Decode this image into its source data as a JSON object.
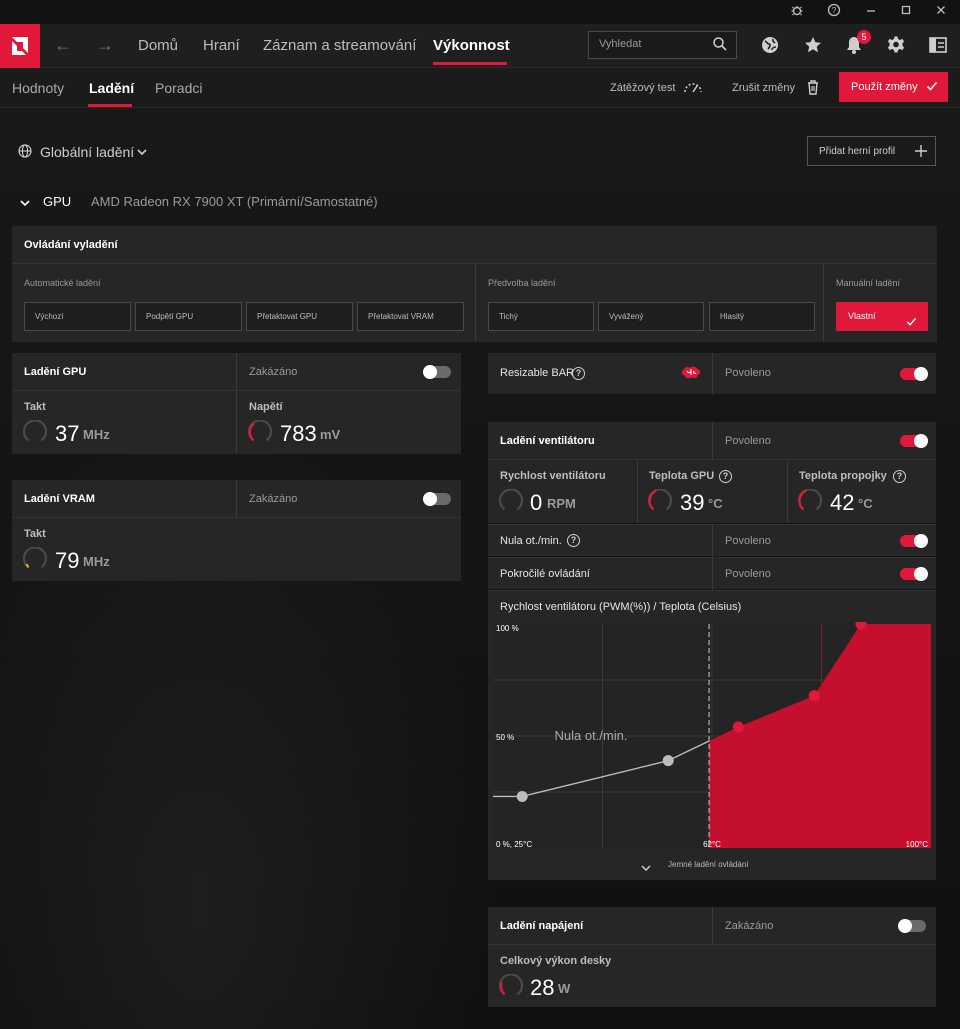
{
  "topnav": {
    "items": [
      "Domů",
      "Hraní",
      "Záznam a streamování",
      "Výkonnost"
    ],
    "search_placeholder": "Vyhledat",
    "notifications_count": "5"
  },
  "subnav": {
    "tabs": [
      "Hodnoty",
      "Ladění",
      "Poradci"
    ],
    "stress_test": "Zátěžový test",
    "discard": "Zrušit změny",
    "apply": "Použít změny"
  },
  "profile": {
    "global": "Globální ladění",
    "add_profile": "Přidat herní profil"
  },
  "gpu": {
    "label": "GPU",
    "name": "AMD Radeon RX 7900 XT (Primární/Samostatné)"
  },
  "tuning_control": {
    "title": "Ovládání vyladění",
    "auto_label": "Automatické ladění",
    "auto_buttons": [
      "Výchozí",
      "Podpětí GPU",
      "Přetaktovat GPU",
      "Přetaktovat VRAM"
    ],
    "preset_label": "Předvolba ladění",
    "preset_buttons": [
      "Tichý",
      "Vyvážený",
      "Hlasitý"
    ],
    "manual_label": "Manuální ladění",
    "manual_button": "Vlastní"
  },
  "gpu_tuning": {
    "title": "Ladění GPU",
    "state": "Zakázáno",
    "clock_label": "Takt",
    "clock_value": "37",
    "clock_unit": "MHz",
    "voltage_label": "Napětí",
    "voltage_value": "783",
    "voltage_unit": "mV"
  },
  "vram_tuning": {
    "title": "Ladění VRAM",
    "state": "Zakázáno",
    "clock_label": "Takt",
    "clock_value": "79",
    "clock_unit": "MHz"
  },
  "resizable_bar": {
    "title": "Resizable BAR",
    "state": "Povoleno"
  },
  "fan_tuning": {
    "title": "Ladění ventilátoru",
    "state": "Povoleno",
    "fan_speed_label": "Rychlost ventilátoru",
    "fan_speed_value": "0",
    "fan_speed_unit": "RPM",
    "gpu_temp_label": "Teplota GPU",
    "gpu_temp_value": "39",
    "gpu_temp_unit": "°C",
    "junction_temp_label": "Teplota propojky",
    "junction_temp_value": "42",
    "junction_temp_unit": "°C",
    "zero_rpm_label": "Nula ot./min.",
    "zero_rpm_state": "Povoleno",
    "advanced_label": "Pokročilé ovládání",
    "advanced_state": "Povoleno",
    "curve_title": "Rychlost ventilátoru (PWM(%)) / Teplota (Celsius)",
    "fine_tune": "Jemné ladění ovládání"
  },
  "chart_data": {
    "type": "area",
    "title": "Rychlost ventilátoru (PWM(%)) / Teplota (Celsius)",
    "y_tick_labels": [
      "100 %",
      "50 %",
      "0 %, 25°C"
    ],
    "x_tick_labels": [
      "62°C",
      "100°C"
    ],
    "annotation": "Nula ot./min.",
    "xlim": [
      25,
      100
    ],
    "ylim": [
      0,
      100
    ],
    "zero_rpm_threshold_c": 62,
    "points": [
      {
        "x": 30,
        "y": 23,
        "active": false
      },
      {
        "x": 55,
        "y": 39,
        "active": false
      },
      {
        "x": 67,
        "y": 54,
        "active": true
      },
      {
        "x": 80,
        "y": 68,
        "active": true
      },
      {
        "x": 88,
        "y": 100,
        "active": true
      }
    ],
    "grid": true,
    "colors": {
      "fill": "#c4102e",
      "active_point": "#e0193a",
      "inactive_point": "#bdbdbd"
    }
  },
  "power_tuning": {
    "title": "Ladění napájení",
    "state": "Zakázáno",
    "board_power_label": "Celkový výkon desky",
    "board_power_value": "28",
    "board_power_unit": "W"
  },
  "colors": {
    "accent": "#e0193a",
    "panel": "#262626",
    "background": "#141414"
  }
}
